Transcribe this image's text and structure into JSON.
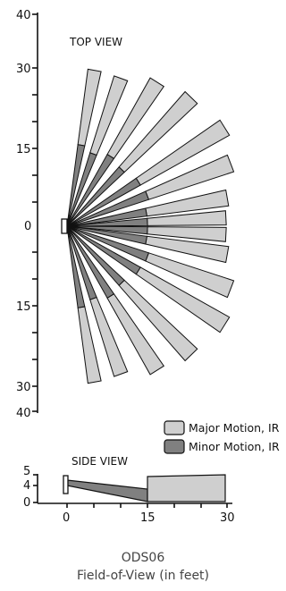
{
  "top_view": {
    "label": "TOP VIEW",
    "y_ticks": [
      "40",
      "30",
      "15",
      "0",
      "15",
      "30",
      "40"
    ]
  },
  "side_view": {
    "label": "SIDE VIEW",
    "y_ticks": [
      "5",
      "4",
      "0"
    ],
    "x_ticks": [
      "0",
      "15",
      "30"
    ]
  },
  "legend": {
    "major": {
      "label": "Major Motion, IR",
      "color": "#cfcfcf"
    },
    "minor": {
      "label": "Minor Motion, IR",
      "color": "#808080"
    }
  },
  "caption": {
    "model": "ODS06",
    "subtitle": "Field-of-View (in feet)"
  }
}
